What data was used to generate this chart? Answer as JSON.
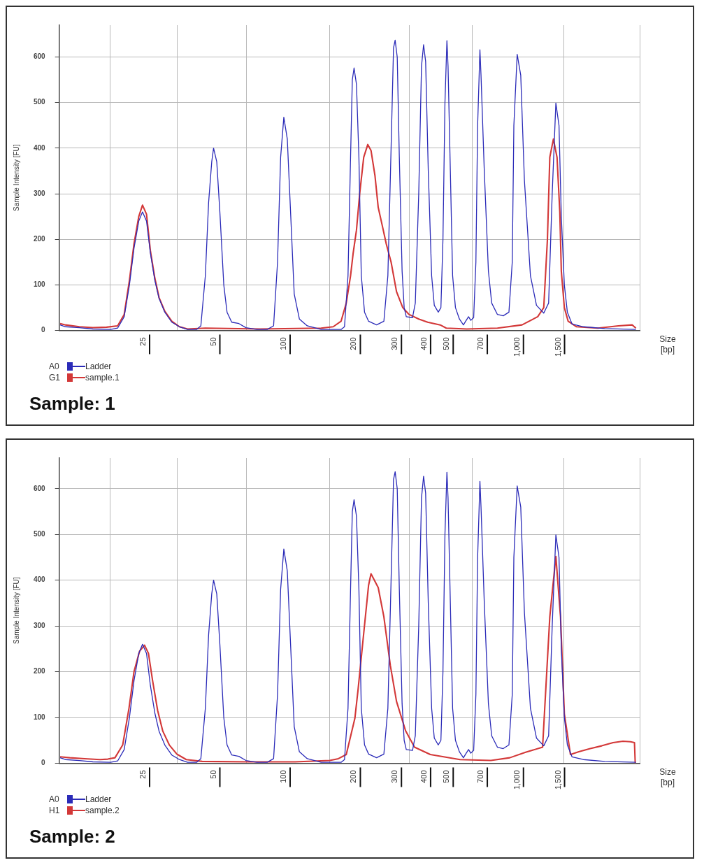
{
  "chart_data": [
    {
      "type": "line",
      "title": "Sample: 1",
      "ylabel": "Sample Intensity [FU]",
      "xlabel": "Size [bp]",
      "legend": "bottom left",
      "grid": true,
      "log": "x",
      "annotations": [
        "A0",
        "G1"
      ],
      "xlim": [
        10.9,
        3350
      ],
      "ylim": [
        0,
        670
      ],
      "yticks": [
        0,
        100,
        200,
        300,
        400,
        500,
        600
      ],
      "xticks": [
        {
          "value": 18,
          "label": null
        },
        25,
        {
          "value": 35,
          "label": null
        },
        50,
        {
          "value": 69,
          "label": null
        },
        100,
        {
          "value": 157,
          "label": null
        },
        200,
        300,
        {
          "value": 346,
          "label": null
        },
        400,
        500,
        {
          "value": 644,
          "label": null
        },
        700,
        {
          "value": 1000,
          "label": "1,000"
        },
        {
          "value": 1500,
          "label": "1,500"
        },
        {
          "value": 1580,
          "label": null
        },
        {
          "value": 3350,
          "label": null
        }
      ],
      "x": [
        11.0,
        11.6,
        13.3,
        15.2,
        18.1,
        19.4,
        20.7,
        21.8,
        22.8,
        23.9,
        24.8,
        25.8,
        26.8,
        28.0,
        29.2,
        30.9,
        33.1,
        35.7,
        38.7,
        42.3,
        44.1,
        46.1,
        47.6,
        49.1,
        50,
        51.6,
        53.2,
        55.3,
        57.1,
        59.8,
        64.2,
        68.8,
        76.7,
        84.9,
        90.4,
        94.0,
        96.9,
        100,
        103.5,
        107.1,
        110.8,
        116.6,
        126,
        144.5,
        175.9,
        182,
        188.4,
        193.2,
        196.6,
        200,
        204.8,
        209.8,
        214.8,
        221.8,
        230.8,
        249.8,
        268.4,
        279.2,
        288.2,
        295.2,
        300,
        306.2,
        312.6,
        321.3,
        327.9,
        334.8,
        356.1,
        366,
        378.6,
        389.1,
        397.2,
        405.3,
        416,
        430,
        441.4,
        459.2,
        471.2,
        480.8,
        490.4,
        500,
        505.6,
        517.2,
        528.9,
        543.9,
        565.5,
        588.5,
        601.5,
        619,
        633,
        651,
        665.5,
        677,
        692.5,
        700,
        723,
        753,
        777.7,
        823,
        871.5,
        922,
        952.7,
        968,
        1000,
        1036,
        1074,
        1140,
        1210,
        1300,
        1364,
        1413,
        1465,
        1511,
        1546,
        1593,
        1641,
        1718,
        1922,
        2372,
        3228
      ],
      "series": [
        {
          "name": "Ladder",
          "color": "#2b2bb8",
          "values": [
            12,
            8,
            6,
            3,
            2,
            5,
            30,
            100,
            180,
            240,
            260,
            240,
            170,
            110,
            70,
            40,
            18,
            8,
            2,
            2,
            10,
            120,
            280,
            370,
            400,
            370,
            260,
            100,
            40,
            18,
            15,
            6,
            2,
            2,
            10,
            150,
            380,
            468,
            420,
            250,
            80,
            25,
            10,
            2,
            2,
            8,
            120,
            380,
            550,
            576,
            540,
            380,
            120,
            40,
            20,
            12,
            20,
            120,
            400,
            620,
            637,
            600,
            380,
            130,
            50,
            30,
            28,
            60,
            300,
            580,
            627,
            590,
            350,
            120,
            55,
            40,
            50,
            200,
            500,
            636,
            580,
            350,
            120,
            50,
            25,
            12,
            20,
            30,
            22,
            28,
            150,
            450,
            616,
            560,
            350,
            130,
            60,
            35,
            32,
            40,
            150,
            450,
            606,
            560,
            330,
            120,
            55,
            38,
            60,
            300,
            499,
            450,
            250,
            100,
            40,
            14,
            8,
            4,
            2
          ]
        },
        {
          "name": "sample.1",
          "color": "#d33838",
          "x": [
            11.0,
            11.6,
            13.3,
            15.2,
            17.4,
            19.4,
            20.7,
            21.8,
            22.8,
            23.9,
            24.8,
            25.8,
            26.8,
            28.0,
            29.2,
            30.9,
            33.1,
            35.7,
            38.7,
            46.1,
            79.2,
            144.5,
            162.8,
            175.9,
            185.2,
            193.2,
            198.3,
            204.8,
            211.4,
            220,
            229,
            236.4,
            245.8,
            253.8,
            264.2,
            274.8,
            288.2,
            304.1,
            323.4,
            344,
            378.6,
            413.3,
            468,
            496.8,
            608.5,
            823,
            1049,
            1225,
            1300,
            1348,
            1380,
            1430,
            1482,
            1523,
            1546,
            1593,
            1654,
            1797,
            2217,
            2716,
            3110,
            3228
          ],
          "values": [
            15,
            12,
            8,
            6,
            7,
            10,
            35,
            110,
            190,
            250,
            275,
            255,
            175,
            115,
            72,
            42,
            20,
            8,
            3,
            5,
            3,
            5,
            8,
            20,
            60,
            120,
            170,
            220,
            300,
            380,
            408,
            395,
            340,
            270,
            230,
            190,
            150,
            85,
            50,
            35,
            25,
            18,
            12,
            5,
            3,
            5,
            12,
            30,
            50,
            200,
            380,
            420,
            380,
            260,
            130,
            50,
            20,
            8,
            5,
            10,
            12,
            5
          ]
        }
      ]
    },
    {
      "type": "line",
      "title": "Sample: 2",
      "ylabel": "Sample Intensity [FU]",
      "xlabel": "Size [bp]",
      "legend": "bottom left",
      "grid": true,
      "log": "x",
      "annotations": [
        "A0",
        "H1"
      ],
      "xlim": [
        10.9,
        3350
      ],
      "ylim": [
        0,
        667
      ],
      "yticks": [
        0,
        100,
        200,
        300,
        400,
        500,
        600
      ],
      "xticks": [
        {
          "value": 18,
          "label": null
        },
        25,
        {
          "value": 35,
          "label": null
        },
        50,
        {
          "value": 69,
          "label": null
        },
        100,
        {
          "value": 157,
          "label": null
        },
        200,
        300,
        {
          "value": 346,
          "label": null
        },
        400,
        500,
        {
          "value": 644,
          "label": null
        },
        700,
        {
          "value": 1000,
          "label": "1,000"
        },
        {
          "value": 1500,
          "label": "1,500"
        },
        {
          "value": 1580,
          "label": null
        },
        {
          "value": 3350,
          "label": null
        }
      ],
      "x": [
        11.0,
        11.6,
        13.3,
        15.2,
        18.1,
        19.4,
        20.7,
        21.8,
        22.8,
        23.9,
        24.8,
        25.8,
        26.8,
        28.0,
        29.2,
        30.9,
        33.1,
        35.7,
        38.7,
        42.3,
        44.1,
        46.1,
        47.6,
        49.1,
        50,
        51.6,
        53.2,
        55.3,
        57.1,
        59.8,
        64.2,
        68.8,
        76.7,
        84.9,
        90.4,
        94.0,
        96.9,
        100,
        103.5,
        107.1,
        110.8,
        116.6,
        126,
        144.5,
        175.9,
        182,
        188.4,
        193.2,
        196.6,
        200,
        204.8,
        209.8,
        214.8,
        221.8,
        230.8,
        249.8,
        268.4,
        279.2,
        288.2,
        295.2,
        300,
        306.2,
        312.6,
        321.3,
        327.9,
        334.8,
        356.1,
        366,
        378.6,
        389.1,
        397.2,
        405.3,
        416,
        430,
        441.4,
        459.2,
        471.2,
        480.8,
        490.4,
        500,
        505.6,
        517.2,
        528.9,
        543.9,
        565.5,
        588.5,
        601.5,
        619,
        633,
        651,
        665.5,
        677,
        692.5,
        700,
        723,
        753,
        777.7,
        823,
        871.5,
        922,
        952.7,
        968,
        1000,
        1036,
        1074,
        1140,
        1210,
        1300,
        1364,
        1413,
        1465,
        1511,
        1546,
        1593,
        1641,
        1718,
        1922,
        2372,
        3228
      ],
      "series": [
        {
          "name": "Ladder",
          "color": "#2b2bb8",
          "values": [
            12,
            8,
            6,
            3,
            2,
            5,
            30,
            100,
            180,
            240,
            260,
            240,
            170,
            110,
            70,
            40,
            18,
            8,
            2,
            2,
            10,
            120,
            280,
            370,
            400,
            370,
            260,
            100,
            40,
            18,
            15,
            6,
            2,
            2,
            10,
            150,
            380,
            468,
            420,
            250,
            80,
            25,
            10,
            2,
            2,
            8,
            120,
            380,
            550,
            576,
            540,
            380,
            120,
            40,
            20,
            12,
            20,
            120,
            400,
            620,
            637,
            600,
            380,
            130,
            50,
            30,
            28,
            60,
            300,
            580,
            627,
            590,
            350,
            120,
            55,
            40,
            50,
            200,
            500,
            636,
            580,
            350,
            120,
            50,
            25,
            12,
            20,
            30,
            22,
            28,
            150,
            450,
            616,
            560,
            350,
            130,
            60,
            35,
            32,
            40,
            150,
            450,
            606,
            560,
            330,
            120,
            55,
            38,
            60,
            300,
            499,
            450,
            250,
            100,
            40,
            14,
            8,
            4,
            2
          ]
        },
        {
          "name": "sample.2",
          "color": "#d33838",
          "x": [
            11.0,
            12.1,
            14.0,
            16.3,
            17.6,
            18.9,
            20.4,
            21.7,
            22.8,
            24.1,
            25.3,
            26.3,
            27.4,
            28.8,
            30.3,
            32.3,
            34.8,
            38.2,
            44.7,
            69.4,
            111.8,
            157.4,
            171.4,
            185.2,
            201.6,
            208.2,
            218.3,
            230.8,
            236.4,
            253.8,
            268.4,
            286,
            304.1,
            332.5,
            363.3,
            424.4,
            568.9,
            771.6,
            929.7,
            1087,
            1285,
            1380,
            1465,
            1534,
            1593,
            1692,
            1838,
            2057,
            2302,
            2577,
            2841,
            3063,
            3182,
            3206
          ],
          "values": [
            14,
            12,
            10,
            8,
            9,
            12,
            40,
            120,
            200,
            245,
            258,
            240,
            180,
            115,
            70,
            40,
            20,
            8,
            4,
            3,
            3,
            6,
            10,
            19,
            98,
            162,
            267,
            389,
            414,
            384,
            320,
            214,
            135,
            71,
            35,
            19,
            8,
            6,
            12,
            24,
            35,
            320,
            452,
            320,
            108,
            19,
            25,
            32,
            38,
            45,
            48,
            47,
            45,
            0
          ]
        }
      ]
    }
  ]
}
